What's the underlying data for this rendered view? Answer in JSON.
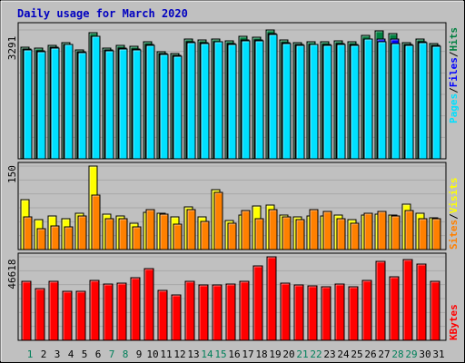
{
  "chart_data": {
    "type": "bar",
    "title": "Daily usage for March 2020",
    "categories": [
      "1",
      "2",
      "3",
      "4",
      "5",
      "6",
      "7",
      "8",
      "9",
      "10",
      "11",
      "12",
      "13",
      "14",
      "15",
      "16",
      "17",
      "18",
      "19",
      "20",
      "21",
      "22",
      "23",
      "24",
      "25",
      "26",
      "27",
      "28",
      "29",
      "30",
      "31"
    ],
    "weekend_days": [
      "1",
      "7",
      "8",
      "14",
      "15",
      "21",
      "22",
      "28",
      "29"
    ],
    "panels": [
      {
        "name": "hits",
        "ymax": 3291,
        "ymax_label": "3291",
        "series": [
          {
            "name": "Hits",
            "color": "#008040",
            "values": [
              2862,
              2817,
              2886,
              2968,
              2787,
              3216,
              2835,
              2891,
              2864,
              2994,
              2734,
              2700,
              3052,
              3047,
              3055,
              3012,
              3140,
              3097,
              3291,
              3028,
              2975,
              2990,
              2984,
              3014,
              2979,
              3143,
              3258,
              3208,
              2978,
              3061,
              2950
            ]
          },
          {
            "name": "Files",
            "color": "#0000ff",
            "values": [
              2800,
              2760,
              2840,
              2930,
              2740,
              3140,
              2780,
              2830,
              2810,
              2920,
              2680,
              2640,
              2990,
              2960,
              3000,
              2950,
              3030,
              3030,
              3190,
              2960,
              2910,
              2930,
              2920,
              2950,
              2910,
              3070,
              3050,
              3050,
              2920,
              2990,
              2900
            ]
          },
          {
            "name": "Pages",
            "color": "#00e0ff",
            "values": [
              2780,
              2740,
              2820,
              2910,
              2720,
              3130,
              2760,
              2810,
              2790,
              2900,
              2660,
              2620,
              2970,
              2940,
              2980,
              2930,
              3010,
              3010,
              3170,
              2940,
              2890,
              2910,
              2900,
              2930,
              2890,
              3050,
              3000,
              2950,
              2900,
              2970,
              2880
            ]
          }
        ]
      },
      {
        "name": "visits",
        "ymax": 150,
        "ymax_label": "150",
        "series": [
          {
            "name": "Visits",
            "color": "#ffff00",
            "values": [
              90,
              54,
              60,
              56,
              65,
              150,
              64,
              60,
              48,
              67,
              66,
              59,
              77,
              58,
              108,
              52,
              62,
              78,
              80,
              62,
              59,
              61,
              61,
              62,
              54,
              62,
              64,
              62,
              82,
              66,
              57
            ]
          },
          {
            "name": "Sites",
            "color": "#ff8000",
            "values": [
              58,
              38,
              43,
              41,
              60,
              98,
              55,
              55,
              41,
              71,
              63,
              46,
              71,
              51,
              102,
              48,
              70,
              56,
              72,
              58,
              53,
              72,
              69,
              56,
              48,
              65,
              68,
              60,
              70,
              56,
              56
            ]
          }
        ]
      },
      {
        "name": "kbytes",
        "ymax": 46618,
        "ymax_label": "46618",
        "series": [
          {
            "name": "KBytes",
            "color": "#ff0000",
            "values": [
              32700,
              28800,
              32700,
              27200,
              27200,
              33500,
              31200,
              32000,
              35100,
              40100,
              28000,
              25400,
              32700,
              30800,
              30800,
              31200,
              32700,
              41700,
              46618,
              31800,
              30800,
              30400,
              30000,
              31200,
              29700,
              33500,
              44200,
              35700,
              45100,
              42400,
              33100
            ]
          }
        ]
      }
    ]
  }
}
